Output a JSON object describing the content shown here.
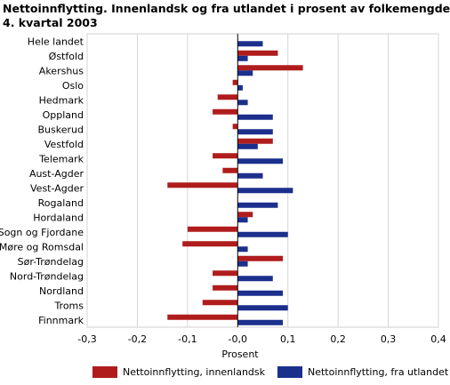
{
  "chart_data": {
    "type": "bar",
    "orientation": "horizontal",
    "title_lines": [
      "Nettoinnflytting. Innenlandsk og fra utlandet i prosent av folkemengden.",
      "4. kvartal 2003"
    ],
    "xlabel": "Prosent",
    "ylabel": "",
    "xlim": [
      -0.3,
      0.4
    ],
    "xticks": [
      -0.3,
      -0.2,
      -0.1,
      0.0,
      0.1,
      0.2,
      0.3,
      0.4
    ],
    "xtick_labels": [
      "-0,3",
      "-0,2",
      "-0,1",
      "-0,0",
      "0,1",
      "0,2",
      "0,3",
      "0,4"
    ],
    "grid": "vertical",
    "legend_position": "bottom",
    "categories": [
      "Hele landet",
      "Østfold",
      "Akershus",
      "Oslo",
      "Hedmark",
      "Oppland",
      "Buskerud",
      "Vestfold",
      "Telemark",
      "Aust-Agder",
      "Vest-Agder",
      "Rogaland",
      "Hordaland",
      "Sogn og Fjordane",
      "Møre og Romsdal",
      "Sør-Trøndelag",
      "Nord-Trøndelag",
      "Nordland",
      "Troms",
      "Finnmark"
    ],
    "series": [
      {
        "name": "Nettoinnflytting, innenlandsk",
        "color": "#b01c1c",
        "values": [
          0.0,
          0.08,
          0.13,
          -0.01,
          -0.04,
          -0.05,
          -0.01,
          0.07,
          -0.05,
          -0.03,
          -0.14,
          0.0,
          0.03,
          -0.1,
          -0.11,
          0.09,
          -0.05,
          -0.05,
          -0.07,
          -0.14
        ]
      },
      {
        "name": "Nettoinnflytting, fra utlandet",
        "color": "#1b2f8c",
        "values": [
          0.05,
          0.02,
          0.03,
          0.01,
          0.02,
          0.07,
          0.07,
          0.04,
          0.09,
          0.05,
          0.11,
          0.08,
          0.02,
          0.1,
          0.02,
          0.02,
          0.07,
          0.09,
          0.1,
          0.09
        ]
      }
    ]
  }
}
